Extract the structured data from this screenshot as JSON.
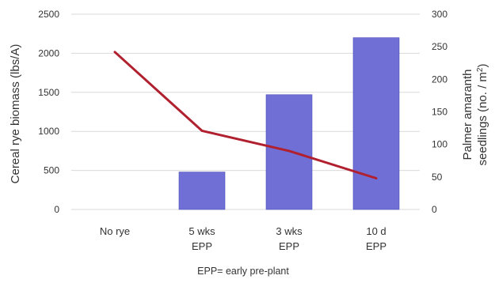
{
  "chart_data": {
    "type": "bar+line",
    "categories": [
      [
        "No rye"
      ],
      [
        "5 wks",
        "EPP"
      ],
      [
        "3 wks",
        "EPP"
      ],
      [
        "10 d",
        "EPP"
      ]
    ],
    "series": [
      {
        "type": "bar",
        "axis": "left",
        "values": [
          0,
          480,
          1470,
          2200
        ],
        "color": "#6f6fd6"
      },
      {
        "type": "line",
        "axis": "right",
        "values": [
          242,
          121,
          90,
          48
        ],
        "color": "#b0202e"
      }
    ],
    "xlabel": "EPP= early pre-plant",
    "ylabel_left": "Cereal rye biomass (lbs/A)",
    "ylabel_right_line1": "Palmer amaranth",
    "ylabel_right_line2": "seedlings (no. / m",
    "ylabel_right_sup": "2",
    "ylabel_right_close": ")",
    "ylim_left": [
      0,
      2500
    ],
    "ylim_right": [
      0,
      300
    ],
    "yticks_left": [
      "0",
      "500",
      "1000",
      "1500",
      "2000",
      "2500"
    ],
    "yticks_right": [
      "0",
      "50",
      "100",
      "150",
      "200",
      "250",
      "300"
    ],
    "grid": true,
    "legend": "none"
  }
}
